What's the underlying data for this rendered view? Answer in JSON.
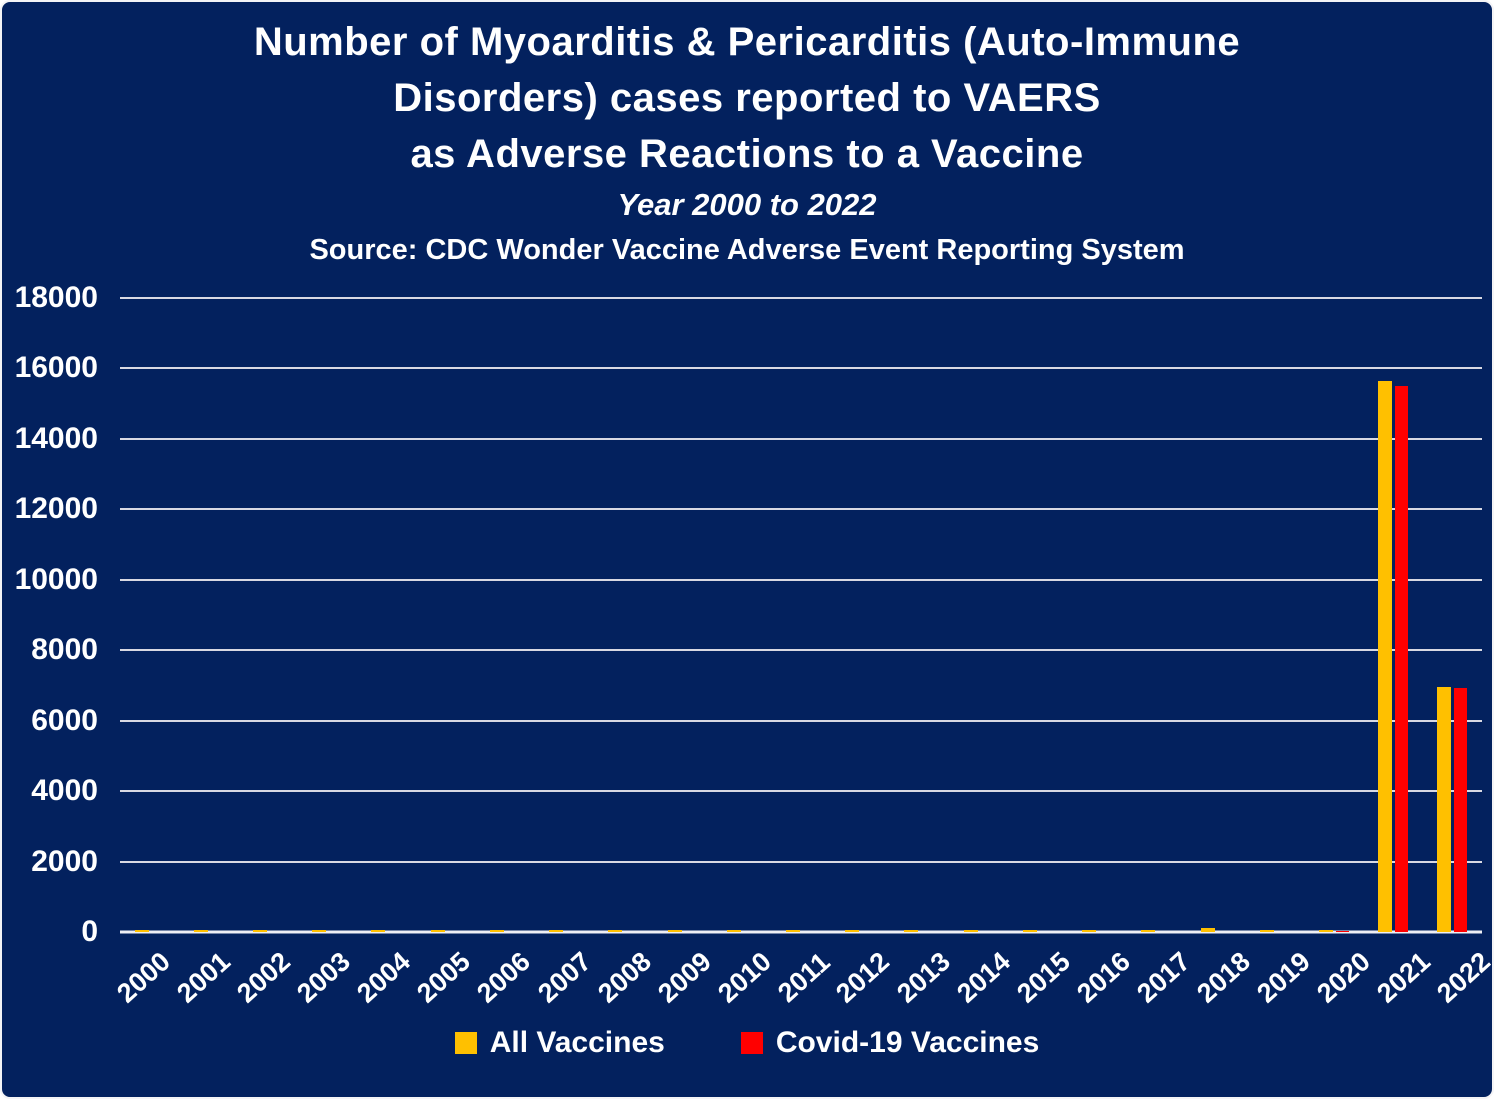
{
  "title": {
    "line1": "Number of Myoarditis & Pericarditis (Auto-Immune",
    "line2": "Disorders) cases reported to VAERS",
    "line3": "as Adverse Reactions to a Vaccine",
    "subtitle": "Year 2000 to 2022",
    "source": "Source: CDC Wonder Vaccine Adverse Event Reporting System"
  },
  "colors": {
    "background": "#03215E",
    "all_vaccines": "#FFC000",
    "covid_vaccines": "#FF0000",
    "gridline": "#D9D9E3",
    "axis_line": "#EEEEF4",
    "text": "#FFFFFF"
  },
  "chart_data": {
    "type": "bar",
    "title": "Number of Myoarditis & Pericarditis (Auto-Immune Disorders) cases reported to VAERS as Adverse Reactions to a Vaccine",
    "subtitle": "Year 2000 to 2022",
    "source": "Source: CDC Wonder Vaccine Adverse Event Reporting System",
    "categories": [
      "2000",
      "2001",
      "2002",
      "2003",
      "2004",
      "2005",
      "2006",
      "2007",
      "2008",
      "2009",
      "2010",
      "2011",
      "2012",
      "2013",
      "2014",
      "2015",
      "2016",
      "2017",
      "2018",
      "2019",
      "2020",
      "2021",
      "2022"
    ],
    "series": [
      {
        "name": "All Vaccines",
        "color": "#FFC000",
        "values": [
          50,
          50,
          55,
          70,
          50,
          55,
          65,
          55,
          60,
          55,
          60,
          60,
          55,
          55,
          45,
          50,
          60,
          55,
          120,
          55,
          55,
          15650,
          6960
        ]
      },
      {
        "name": "Covid-19 Vaccines",
        "color": "#FF0000",
        "values": [
          0,
          0,
          0,
          0,
          0,
          0,
          0,
          0,
          0,
          0,
          0,
          0,
          0,
          0,
          0,
          0,
          0,
          0,
          0,
          0,
          30,
          15500,
          6920
        ]
      }
    ],
    "xlabel": "",
    "ylabel": "",
    "ylim": [
      0,
      18000
    ],
    "yticks": [
      0,
      2000,
      4000,
      6000,
      8000,
      10000,
      12000,
      14000,
      16000,
      18000
    ],
    "grid": "horizontal",
    "legend_position": "bottom"
  },
  "legend": {
    "items": [
      {
        "label": "All Vaccines",
        "color": "#FFC000"
      },
      {
        "label": "Covid-19 Vaccines",
        "color": "#FF0000"
      }
    ]
  }
}
